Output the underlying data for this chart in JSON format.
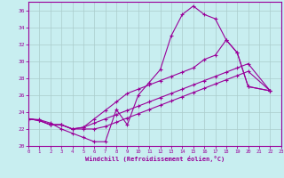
{
  "xlabel": "Windchill (Refroidissement éolien,°C)",
  "bg_color": "#c8eef0",
  "line_color": "#990099",
  "grid_color": "#aacccc",
  "xlim": [
    0,
    23
  ],
  "ylim": [
    20,
    37
  ],
  "xticks": [
    0,
    1,
    2,
    3,
    4,
    5,
    6,
    7,
    8,
    9,
    10,
    11,
    12,
    13,
    14,
    15,
    16,
    17,
    18,
    19,
    20,
    21,
    22,
    23
  ],
  "yticks": [
    20,
    22,
    24,
    26,
    28,
    30,
    32,
    34,
    36
  ],
  "s1_x": [
    0,
    1,
    2,
    3,
    4,
    5,
    6,
    7,
    8,
    9,
    10,
    11,
    12,
    13,
    14,
    15,
    16,
    17,
    18,
    19,
    20,
    22
  ],
  "s1_y": [
    23.2,
    23.1,
    22.7,
    22.0,
    21.5,
    21.0,
    20.5,
    20.5,
    24.3,
    22.5,
    26.0,
    27.5,
    29.0,
    33.0,
    35.5,
    36.5,
    35.5,
    35.0,
    32.5,
    31.0,
    27.0,
    26.5
  ],
  "s2_x": [
    0,
    1,
    2,
    3,
    4,
    5,
    6,
    7,
    8,
    9,
    10,
    11,
    12,
    13,
    14,
    15,
    16,
    17,
    18,
    19,
    20,
    22
  ],
  "s2_y": [
    23.2,
    23.0,
    22.5,
    22.5,
    22.0,
    22.0,
    22.0,
    22.3,
    22.8,
    23.3,
    23.8,
    24.3,
    24.8,
    25.3,
    25.8,
    26.3,
    26.8,
    27.3,
    27.8,
    28.3,
    28.8,
    26.5
  ],
  "s3_x": [
    0,
    1,
    2,
    3,
    4,
    5,
    6,
    7,
    8,
    9,
    10,
    11,
    12,
    13,
    14,
    15,
    16,
    17,
    18,
    19,
    20,
    22
  ],
  "s3_y": [
    23.2,
    23.0,
    22.5,
    22.5,
    22.0,
    22.2,
    22.7,
    23.2,
    23.7,
    24.2,
    24.7,
    25.2,
    25.7,
    26.2,
    26.7,
    27.2,
    27.7,
    28.2,
    28.7,
    29.2,
    29.7,
    26.5
  ],
  "s4_x": [
    0,
    1,
    2,
    3,
    4,
    5,
    6,
    7,
    8,
    9,
    10,
    11,
    12,
    13,
    14,
    15,
    16,
    17,
    18,
    19,
    20,
    22
  ],
  "s4_y": [
    23.2,
    23.0,
    22.5,
    22.5,
    22.0,
    22.2,
    23.2,
    24.2,
    25.2,
    26.2,
    26.7,
    27.2,
    27.7,
    28.2,
    28.7,
    29.2,
    30.2,
    30.7,
    32.5,
    31.0,
    27.0,
    26.5
  ]
}
